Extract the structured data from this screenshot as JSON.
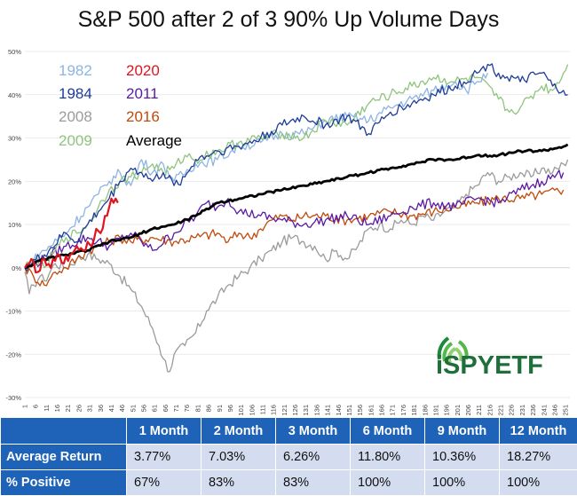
{
  "chart_data": {
    "type": "line",
    "title": "S&P 500 after 2 of 3 90% Up Volume Days",
    "ylim": [
      -0.3,
      0.5
    ],
    "yticks": [
      "50%",
      "40%",
      "30%",
      "20%",
      "10%",
      "0%",
      "-10%",
      "-20%",
      "-30%"
    ],
    "xticks": [
      "1",
      "6",
      "11",
      "16",
      "21",
      "26",
      "31",
      "36",
      "41",
      "46",
      "51",
      "56",
      "61",
      "66",
      "71",
      "76",
      "81",
      "86",
      "91",
      "96",
      "101",
      "106",
      "111",
      "116",
      "121",
      "126",
      "131",
      "136",
      "141",
      "146",
      "151",
      "156",
      "161",
      "166",
      "171",
      "176",
      "181",
      "186",
      "191",
      "196",
      "201",
      "206",
      "211",
      "216",
      "221",
      "226",
      "231",
      "236",
      "241",
      "246",
      "251"
    ],
    "series": [
      {
        "name": "1982",
        "color": "#8db4e2",
        "points": [
          [
            1,
            0.0
          ],
          [
            10,
            0.04
          ],
          [
            20,
            0.08
          ],
          [
            30,
            0.14
          ],
          [
            35,
            0.17
          ],
          [
            40,
            0.2
          ],
          [
            45,
            0.22
          ],
          [
            50,
            0.19
          ],
          [
            55,
            0.25
          ],
          [
            60,
            0.22
          ],
          [
            65,
            0.24
          ],
          [
            70,
            0.2
          ],
          [
            80,
            0.24
          ],
          [
            90,
            0.25
          ],
          [
            100,
            0.28
          ],
          [
            110,
            0.29
          ],
          [
            120,
            0.31
          ],
          [
            130,
            0.31
          ],
          [
            140,
            0.34
          ],
          [
            150,
            0.35
          ],
          [
            160,
            0.34
          ],
          [
            170,
            0.37
          ],
          [
            180,
            0.39
          ],
          [
            190,
            0.41
          ],
          [
            200,
            0.43
          ],
          [
            205,
            0.41
          ],
          [
            210,
            0.43
          ],
          [
            215,
            0.45
          ]
        ]
      },
      {
        "name": "2020",
        "color": "#e0141e",
        "points": [
          [
            1,
            0.0
          ],
          [
            4,
            0.02
          ],
          [
            7,
            -0.01
          ],
          [
            10,
            0.02
          ],
          [
            13,
            0.0
          ],
          [
            16,
            0.03
          ],
          [
            19,
            0.01
          ],
          [
            22,
            0.03
          ],
          [
            25,
            0.05
          ],
          [
            28,
            0.04
          ],
          [
            30,
            0.06
          ],
          [
            32,
            0.05
          ],
          [
            34,
            0.09
          ],
          [
            36,
            0.08
          ],
          [
            38,
            0.12
          ],
          [
            40,
            0.14
          ],
          [
            41,
            0.16
          ],
          [
            42,
            0.15
          ],
          [
            43,
            0.16
          ],
          [
            44,
            0.15
          ]
        ]
      },
      {
        "name": "1984",
        "color": "#1f3d99",
        "points": [
          [
            1,
            0.0
          ],
          [
            10,
            0.03
          ],
          [
            20,
            0.08
          ],
          [
            25,
            0.06
          ],
          [
            30,
            0.1
          ],
          [
            35,
            0.13
          ],
          [
            40,
            0.16
          ],
          [
            45,
            0.2
          ],
          [
            50,
            0.23
          ],
          [
            55,
            0.22
          ],
          [
            60,
            0.2
          ],
          [
            65,
            0.22
          ],
          [
            70,
            0.19
          ],
          [
            75,
            0.21
          ],
          [
            80,
            0.25
          ],
          [
            90,
            0.27
          ],
          [
            100,
            0.28
          ],
          [
            110,
            0.3
          ],
          [
            120,
            0.33
          ],
          [
            130,
            0.35
          ],
          [
            140,
            0.33
          ],
          [
            150,
            0.35
          ],
          [
            160,
            0.31
          ],
          [
            170,
            0.36
          ],
          [
            180,
            0.38
          ],
          [
            190,
            0.4
          ],
          [
            200,
            0.42
          ],
          [
            210,
            0.45
          ],
          [
            215,
            0.47
          ],
          [
            220,
            0.45
          ],
          [
            230,
            0.43
          ],
          [
            240,
            0.45
          ],
          [
            245,
            0.42
          ],
          [
            250,
            0.41
          ],
          [
            252,
            0.4
          ]
        ]
      },
      {
        "name": "2011",
        "color": "#5a1aa3",
        "points": [
          [
            1,
            0.0
          ],
          [
            10,
            0.02
          ],
          [
            20,
            0.05
          ],
          [
            30,
            0.07
          ],
          [
            40,
            0.05
          ],
          [
            50,
            0.08
          ],
          [
            55,
            0.06
          ],
          [
            60,
            0.04
          ],
          [
            70,
            0.08
          ],
          [
            80,
            0.12
          ],
          [
            85,
            0.15
          ],
          [
            90,
            0.14
          ],
          [
            95,
            0.16
          ],
          [
            100,
            0.13
          ],
          [
            110,
            0.12
          ],
          [
            120,
            0.11
          ],
          [
            130,
            0.1
          ],
          [
            140,
            0.11
          ],
          [
            150,
            0.12
          ],
          [
            160,
            0.1
          ],
          [
            170,
            0.12
          ],
          [
            180,
            0.14
          ],
          [
            190,
            0.15
          ],
          [
            200,
            0.14
          ],
          [
            210,
            0.16
          ],
          [
            220,
            0.15
          ],
          [
            230,
            0.18
          ],
          [
            240,
            0.2
          ],
          [
            250,
            0.22
          ]
        ]
      },
      {
        "name": "2008",
        "color": "#9b9b9b",
        "points": [
          [
            1,
            -0.01
          ],
          [
            3,
            -0.06
          ],
          [
            5,
            -0.04
          ],
          [
            8,
            -0.02
          ],
          [
            10,
            -0.03
          ],
          [
            15,
            0.01
          ],
          [
            20,
            0.0
          ],
          [
            25,
            0.02
          ],
          [
            30,
            0.03
          ],
          [
            35,
            0.02
          ],
          [
            40,
            0.01
          ],
          [
            45,
            -0.02
          ],
          [
            50,
            -0.05
          ],
          [
            55,
            -0.09
          ],
          [
            60,
            -0.14
          ],
          [
            63,
            -0.18
          ],
          [
            65,
            -0.21
          ],
          [
            68,
            -0.24
          ],
          [
            70,
            -0.2
          ],
          [
            75,
            -0.18
          ],
          [
            80,
            -0.15
          ],
          [
            85,
            -0.1
          ],
          [
            90,
            -0.07
          ],
          [
            95,
            -0.04
          ],
          [
            100,
            -0.02
          ],
          [
            105,
            0.0
          ],
          [
            110,
            0.02
          ],
          [
            115,
            0.04
          ],
          [
            120,
            0.06
          ],
          [
            125,
            0.07
          ],
          [
            130,
            0.06
          ],
          [
            135,
            0.05
          ],
          [
            140,
            0.02
          ],
          [
            145,
            0.04
          ],
          [
            150,
            0.02
          ],
          [
            155,
            0.05
          ],
          [
            160,
            0.09
          ],
          [
            165,
            0.1
          ],
          [
            170,
            0.09
          ],
          [
            175,
            0.11
          ],
          [
            180,
            0.1
          ],
          [
            185,
            0.12
          ],
          [
            190,
            0.11
          ],
          [
            195,
            0.13
          ],
          [
            200,
            0.14
          ],
          [
            205,
            0.17
          ],
          [
            210,
            0.19
          ],
          [
            215,
            0.22
          ],
          [
            220,
            0.2
          ],
          [
            225,
            0.21
          ],
          [
            230,
            0.22
          ],
          [
            235,
            0.21
          ],
          [
            240,
            0.23
          ],
          [
            245,
            0.22
          ],
          [
            250,
            0.24
          ],
          [
            252,
            0.25
          ]
        ]
      },
      {
        "name": "2016",
        "color": "#c04a0b",
        "points": [
          [
            1,
            0.0
          ],
          [
            5,
            -0.02
          ],
          [
            10,
            -0.04
          ],
          [
            12,
            -0.03
          ],
          [
            15,
            -0.01
          ],
          [
            20,
            0.0
          ],
          [
            25,
            0.02
          ],
          [
            30,
            0.04
          ],
          [
            35,
            0.05
          ],
          [
            40,
            0.06
          ],
          [
            45,
            0.07
          ],
          [
            50,
            0.06
          ],
          [
            60,
            0.07
          ],
          [
            70,
            0.06
          ],
          [
            80,
            0.07
          ],
          [
            90,
            0.08
          ],
          [
            95,
            0.06
          ],
          [
            100,
            0.08
          ],
          [
            105,
            0.07
          ],
          [
            110,
            0.09
          ],
          [
            115,
            0.11
          ],
          [
            120,
            0.12
          ],
          [
            125,
            0.11
          ],
          [
            130,
            0.12
          ],
          [
            140,
            0.12
          ],
          [
            150,
            0.11
          ],
          [
            160,
            0.12
          ],
          [
            170,
            0.13
          ],
          [
            180,
            0.12
          ],
          [
            190,
            0.13
          ],
          [
            200,
            0.14
          ],
          [
            210,
            0.15
          ],
          [
            220,
            0.16
          ],
          [
            230,
            0.16
          ],
          [
            240,
            0.17
          ],
          [
            250,
            0.18
          ]
        ]
      },
      {
        "name": "2009",
        "color": "#8fc47e",
        "points": [
          [
            1,
            0.0
          ],
          [
            5,
            0.02
          ],
          [
            10,
            0.0
          ],
          [
            15,
            0.04
          ],
          [
            20,
            0.07
          ],
          [
            25,
            0.08
          ],
          [
            30,
            0.1
          ],
          [
            35,
            0.14
          ],
          [
            40,
            0.18
          ],
          [
            45,
            0.2
          ],
          [
            50,
            0.21
          ],
          [
            55,
            0.22
          ],
          [
            60,
            0.24
          ],
          [
            65,
            0.22
          ],
          [
            70,
            0.23
          ],
          [
            75,
            0.26
          ],
          [
            80,
            0.25
          ],
          [
            90,
            0.27
          ],
          [
            100,
            0.29
          ],
          [
            110,
            0.3
          ],
          [
            120,
            0.31
          ],
          [
            130,
            0.3
          ],
          [
            140,
            0.34
          ],
          [
            150,
            0.33
          ],
          [
            160,
            0.38
          ],
          [
            170,
            0.4
          ],
          [
            180,
            0.42
          ],
          [
            190,
            0.44
          ],
          [
            200,
            0.43
          ],
          [
            210,
            0.44
          ],
          [
            220,
            0.39
          ],
          [
            225,
            0.36
          ],
          [
            230,
            0.37
          ],
          [
            240,
            0.42
          ],
          [
            245,
            0.41
          ],
          [
            250,
            0.45
          ],
          [
            252,
            0.47
          ]
        ]
      },
      {
        "name": "Average",
        "color": "#000000",
        "points": [
          [
            1,
            0.0
          ],
          [
            10,
            0.02
          ],
          [
            20,
            0.03
          ],
          [
            30,
            0.04
          ],
          [
            40,
            0.06
          ],
          [
            50,
            0.07
          ],
          [
            60,
            0.09
          ],
          [
            70,
            0.1
          ],
          [
            80,
            0.12
          ],
          [
            90,
            0.15
          ],
          [
            100,
            0.16
          ],
          [
            110,
            0.17
          ],
          [
            120,
            0.18
          ],
          [
            130,
            0.19
          ],
          [
            140,
            0.2
          ],
          [
            150,
            0.21
          ],
          [
            160,
            0.22
          ],
          [
            170,
            0.23
          ],
          [
            180,
            0.24
          ],
          [
            190,
            0.25
          ],
          [
            200,
            0.25
          ],
          [
            210,
            0.26
          ],
          [
            220,
            0.26
          ],
          [
            230,
            0.27
          ],
          [
            240,
            0.27
          ],
          [
            250,
            0.28
          ],
          [
            252,
            0.285
          ]
        ]
      }
    ]
  },
  "table": {
    "headers": [
      "",
      "1 Month",
      "2 Month",
      "3 Month",
      "6 Month",
      "9 Month",
      "12 Month"
    ],
    "rows": [
      {
        "label": "Average Return",
        "values": [
          "3.77%",
          "7.03%",
          "6.26%",
          "11.80%",
          "10.36%",
          "18.27%"
        ]
      },
      {
        "label": "% Positive",
        "values": [
          "67%",
          "83%",
          "83%",
          "100%",
          "100%",
          "100%"
        ]
      }
    ]
  },
  "logo": {
    "text": "iSPYETF"
  }
}
